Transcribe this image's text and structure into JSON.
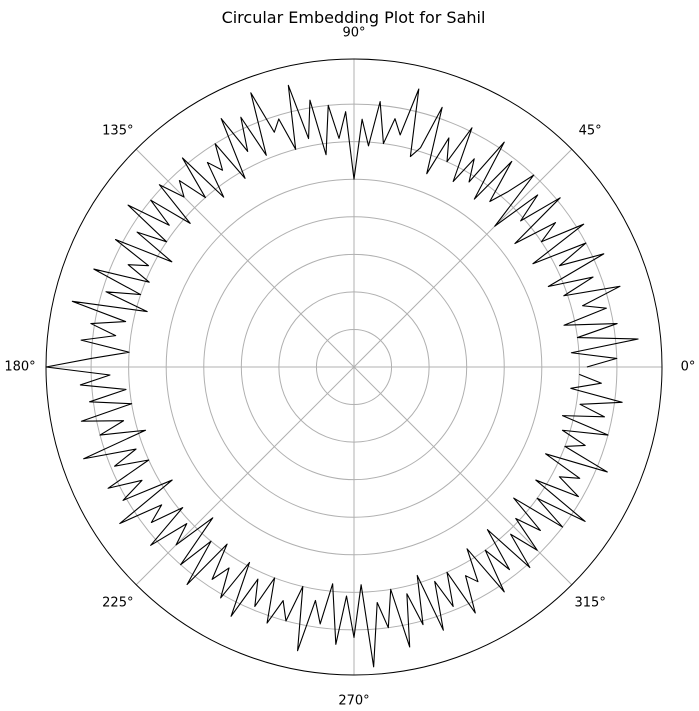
{
  "chart_data": {
    "type": "line",
    "projection": "polar",
    "title": "Circular Embedding Plot for Sahil",
    "angle_tick_labels": [
      "0°",
      "45°",
      "90°",
      "135°",
      "180°",
      "225°",
      "270°",
      "315°"
    ],
    "angle_ticks_deg": [
      0,
      45,
      90,
      135,
      180,
      225,
      270,
      315
    ],
    "radial_grid": [
      0.1,
      0.2,
      0.3,
      0.4,
      0.5,
      0.6,
      0.7
    ],
    "radial_tick_labels_shown": false,
    "rlim": [
      0,
      0.82
    ],
    "grid": true,
    "colors": {
      "line": "#000000",
      "grid": "#b0b0b0",
      "frame": "#000000"
    },
    "series": [
      {
        "theta_deg": [
          0,
          1.875,
          3.75,
          5.625,
          7.5,
          9.375,
          11.25,
          13.125,
          15,
          16.875,
          18.75,
          20.625,
          22.5,
          24.375,
          26.25,
          28.125,
          30,
          31.875,
          33.75,
          35.625,
          37.5,
          39.375,
          41.25,
          43.125,
          45,
          46.875,
          48.75,
          50.625,
          52.5,
          54.375,
          56.25,
          58.125,
          60,
          61.875,
          63.75,
          65.625,
          67.5,
          69.375,
          71.25,
          73.125,
          75,
          76.875,
          78.75,
          80.625,
          82.5,
          84.375,
          86.25,
          88.125,
          90,
          91.875,
          93.75,
          95.625,
          97.5,
          99.375,
          101.25,
          103.125,
          105,
          106.875,
          108.75,
          110.625,
          112.5,
          114.375,
          116.25,
          118.125,
          120,
          121.875,
          123.75,
          125.625,
          127.5,
          129.375,
          131.25,
          133.125,
          135,
          136.875,
          138.75,
          140.625,
          142.5,
          144.375,
          146.25,
          148.125,
          150,
          151.875,
          153.75,
          155.625,
          157.5,
          159.375,
          161.25,
          163.125,
          165,
          166.875,
          168.75,
          170.625,
          172.5,
          174.375,
          176.25,
          178.125,
          180,
          181.875,
          183.75,
          185.625,
          187.5,
          189.375,
          191.25,
          193.125,
          195,
          196.875,
          198.75,
          200.625,
          202.5,
          204.375,
          206.25,
          208.125,
          210,
          211.875,
          213.75,
          215.625,
          217.5,
          219.375,
          221.25,
          223.125,
          225,
          226.875,
          228.75,
          230.625,
          232.5,
          234.375,
          236.25,
          238.125,
          240,
          241.875,
          243.75,
          245.625,
          247.5,
          249.375,
          251.25,
          253.125,
          255,
          256.875,
          258.75,
          260.625,
          262.5,
          264.375,
          266.25,
          268.125,
          270,
          271.875,
          273.75,
          275.625,
          277.5,
          279.375,
          281.25,
          283.125,
          285,
          286.875,
          288.75,
          290.625,
          292.5,
          294.375,
          296.25,
          298.125,
          300,
          301.875,
          303.75,
          305.625,
          307.5,
          309.375,
          311.25,
          313.125,
          315,
          316.875,
          318.75,
          320.625,
          322.5,
          324.375,
          326.25,
          328.125,
          330,
          331.875,
          333.75,
          335.625,
          337.5,
          339.375,
          341.25,
          343.125,
          345,
          346.875,
          348.75,
          350.625,
          352.5,
          354.375,
          356.25,
          358.125
        ],
        "r": [
          0.62,
          0.7,
          0.58,
          0.76,
          0.6,
          0.71,
          0.57,
          0.69,
          0.63,
          0.74,
          0.59,
          0.68,
          0.56,
          0.73,
          0.61,
          0.7,
          0.55,
          0.72,
          0.6,
          0.66,
          0.54,
          0.71,
          0.59,
          0.67,
          0.53,
          0.7,
          0.62,
          0.57,
          0.69,
          0.55,
          0.72,
          0.58,
          0.64,
          0.56,
          0.71,
          0.6,
          0.66,
          0.55,
          0.73,
          0.61,
          0.58,
          0.76,
          0.63,
          0.67,
          0.6,
          0.71,
          0.59,
          0.66,
          0.5,
          0.68,
          0.61,
          0.7,
          0.57,
          0.72,
          0.62,
          0.77,
          0.6,
          0.69,
          0.66,
          0.78,
          0.61,
          0.73,
          0.64,
          0.75,
          0.58,
          0.7,
          0.63,
          0.67,
          0.57,
          0.72,
          0.6,
          0.68,
          0.64,
          0.71,
          0.58,
          0.7,
          0.62,
          0.74,
          0.6,
          0.68,
          0.56,
          0.72,
          0.61,
          0.66,
          0.59,
          0.74,
          0.6,
          0.69,
          0.57,
          0.77,
          0.62,
          0.71,
          0.64,
          0.73,
          0.6,
          0.7,
          0.82,
          0.65,
          0.73,
          0.61,
          0.71,
          0.6,
          0.74,
          0.63,
          0.7,
          0.58,
          0.76,
          0.62,
          0.69,
          0.6,
          0.73,
          0.64,
          0.71,
          0.57,
          0.75,
          0.63,
          0.68,
          0.59,
          0.72,
          0.61,
          0.67,
          0.55,
          0.7,
          0.6,
          0.73,
          0.58,
          0.68,
          0.63,
          0.71,
          0.59,
          0.74,
          0.62,
          0.69,
          0.6,
          0.72,
          0.65,
          0.7,
          0.6,
          0.77,
          0.63,
          0.69,
          0.58,
          0.74,
          0.61,
          0.72,
          0.58,
          0.8,
          0.63,
          0.7,
          0.6,
          0.76,
          0.62,
          0.71,
          0.58,
          0.74,
          0.61,
          0.69,
          0.6,
          0.73,
          0.63,
          0.66,
          0.57,
          0.72,
          0.6,
          0.68,
          0.56,
          0.71,
          0.61,
          0.69,
          0.59,
          0.66,
          0.55,
          0.7,
          0.6,
          0.74,
          0.57,
          0.69,
          0.62,
          0.67,
          0.56,
          0.73,
          0.6,
          0.65,
          0.58,
          0.7,
          0.57,
          0.68,
          0.61,
          0.72,
          0.58,
          0.66,
          0.6,
          0.75,
          0.57,
          0.69,
          0.59
        ]
      }
    ]
  }
}
